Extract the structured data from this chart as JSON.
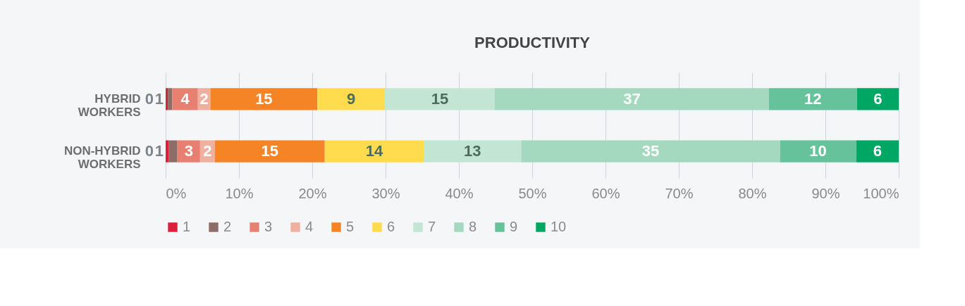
{
  "chart_data": {
    "type": "bar",
    "orientation": "horizontal",
    "stacked": true,
    "title": "PRODUCTIVITY",
    "categories": [
      "HYBRID WORKERS",
      "NON-HYBRID WORKERS"
    ],
    "series": [
      {
        "name": "1",
        "color": "#dc1f3a",
        "values": [
          0.3,
          0.4
        ],
        "value_labels": [
          "0",
          "0"
        ]
      },
      {
        "name": "2",
        "color": "#8c6d68",
        "values": [
          0.6,
          1.2
        ],
        "value_labels": [
          "1",
          "1"
        ]
      },
      {
        "name": "3",
        "color": "#e88072",
        "values": [
          3.5,
          3.1
        ],
        "value_labels": [
          "4",
          "3"
        ]
      },
      {
        "name": "4",
        "color": "#f0b0a0",
        "values": [
          1.7,
          2.0
        ],
        "value_labels": [
          "2",
          "2"
        ]
      },
      {
        "name": "5",
        "color": "#f58426",
        "values": [
          14.6,
          15.0
        ],
        "value_labels": [
          "15",
          "15"
        ]
      },
      {
        "name": "6",
        "color": "#ffdb4d",
        "values": [
          9.2,
          13.5
        ],
        "value_labels": [
          "9",
          "14"
        ]
      },
      {
        "name": "7",
        "color": "#c2e5d4",
        "values": [
          15.0,
          13.3
        ],
        "value_labels": [
          "15",
          "13"
        ]
      },
      {
        "name": "8",
        "color": "#a4d9c0",
        "values": [
          37.4,
          35.3
        ],
        "value_labels": [
          "37",
          "35"
        ]
      },
      {
        "name": "9",
        "color": "#66c29b",
        "values": [
          12.0,
          10.4
        ],
        "value_labels": [
          "12",
          "10"
        ]
      },
      {
        "name": "10",
        "color": "#00a664",
        "values": [
          5.7,
          5.8
        ],
        "value_labels": [
          "6",
          "6"
        ]
      }
    ],
    "xlim": [
      0,
      100
    ],
    "xticks": [
      {
        "value": 0,
        "label": "0%"
      },
      {
        "value": 10,
        "label": "10%"
      },
      {
        "value": 20,
        "label": "20%"
      },
      {
        "value": 30,
        "label": "30%"
      },
      {
        "value": 40,
        "label": "40%"
      },
      {
        "value": 50,
        "label": "50%"
      },
      {
        "value": 60,
        "label": "60%"
      },
      {
        "value": 70,
        "label": "70%"
      },
      {
        "value": 80,
        "label": "80%"
      },
      {
        "value": 90,
        "label": "90%"
      },
      {
        "value": 100,
        "label": "100%"
      }
    ],
    "grid": "x",
    "legend": "bottom"
  }
}
